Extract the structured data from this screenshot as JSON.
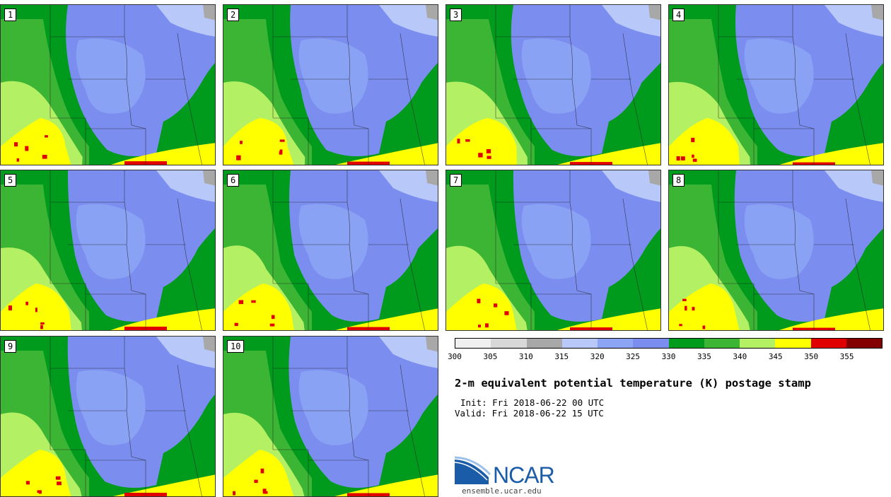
{
  "panels": [
    {
      "label": "1"
    },
    {
      "label": "2"
    },
    {
      "label": "3"
    },
    {
      "label": "4"
    },
    {
      "label": "5"
    },
    {
      "label": "6"
    },
    {
      "label": "7"
    },
    {
      "label": "8"
    },
    {
      "label": "9"
    },
    {
      "label": "10"
    }
  ],
  "colorbar": {
    "ticks": [
      "300",
      "305",
      "310",
      "315",
      "320",
      "325",
      "330",
      "335",
      "340",
      "345",
      "350",
      "355"
    ],
    "colors": [
      "#f0f0f0",
      "#d8d8d8",
      "#a8a8a8",
      "#b8c8f8",
      "#8ca4f4",
      "#7b8ef0",
      "#009a1c",
      "#3cb434",
      "#b4f064",
      "#ffff00",
      "#e00000",
      "#840000"
    ]
  },
  "title": "2-m equivalent potential temperature (K) postage stamp",
  "init": "Init: Fri 2018-06-22 00 UTC",
  "valid": "Valid: Fri 2018-06-22 15 UTC",
  "logo": {
    "name": "NCAR",
    "url": "ensemble.ucar.edu"
  },
  "legend_colors": {
    "blue_light": "#b8c8f8",
    "blue_mid": "#8ca4f4",
    "blue": "#7b8ef0",
    "green_dark": "#009a1c",
    "green": "#3cb434",
    "green_light": "#b4f064",
    "yellow": "#ffff00",
    "red": "#e00000",
    "dark_red": "#840000",
    "gray": "#a8a8a8"
  }
}
